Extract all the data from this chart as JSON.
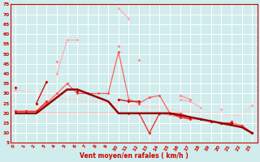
{
  "xlabel": "Vent moyen/en rafales ( km/h )",
  "xlim": [
    -0.5,
    23.5
  ],
  "ylim": [
    5,
    75
  ],
  "yticks": [
    5,
    10,
    15,
    20,
    25,
    30,
    35,
    40,
    45,
    50,
    55,
    60,
    65,
    70,
    75
  ],
  "xticks": [
    0,
    1,
    2,
    3,
    4,
    5,
    6,
    7,
    8,
    9,
    10,
    11,
    12,
    13,
    14,
    15,
    16,
    17,
    18,
    19,
    20,
    21,
    22,
    23
  ],
  "bg_color": "#d0ecec",
  "grid_color": "#ffffff",
  "series": [
    {
      "y": [
        32,
        null,
        null,
        null,
        40,
        57,
        57,
        null,
        null,
        null,
        73,
        68,
        null,
        null,
        null,
        null,
        27,
        26,
        23,
        null,
        22,
        null,
        null,
        24
      ],
      "color": "#ffaaaa",
      "lw": 0.8,
      "marker": true,
      "ms": 2.0,
      "zorder": 2
    },
    {
      "y": [
        null,
        null,
        null,
        null,
        46,
        null,
        null,
        null,
        null,
        null,
        54,
        null,
        47,
        null,
        null,
        null,
        29,
        27,
        null,
        null,
        null,
        null,
        null,
        null
      ],
      "color": "#ff8888",
      "lw": 0.8,
      "marker": true,
      "ms": 2.0,
      "zorder": 2
    },
    {
      "y": [
        33,
        null,
        25,
        36,
        null,
        null,
        31,
        null,
        null,
        null,
        27,
        26,
        26,
        null,
        20,
        20,
        19,
        18,
        17,
        16,
        15,
        15,
        null,
        10
      ],
      "color": "#cc0000",
      "lw": 0.9,
      "marker": true,
      "ms": 2.0,
      "zorder": 4
    },
    {
      "y": [
        21,
        21,
        21,
        26,
        null,
        null,
        null,
        null,
        null,
        null,
        null,
        20,
        20,
        10,
        20,
        20,
        18,
        17,
        null,
        null,
        null,
        16,
        null,
        null
      ],
      "color": "#ff2020",
      "lw": 0.9,
      "marker": true,
      "ms": 2.0,
      "zorder": 3
    },
    {
      "y": [
        21,
        21,
        21,
        25,
        30,
        35,
        30,
        30,
        30,
        30,
        51,
        27,
        25,
        28,
        29,
        20,
        20,
        18,
        17,
        16,
        15,
        15,
        14,
        10
      ],
      "color": "#ff5555",
      "lw": 0.8,
      "marker": true,
      "ms": 2.0,
      "zorder": 2
    },
    {
      "y": [
        20,
        20,
        20,
        24,
        28,
        32,
        32,
        30,
        28,
        26,
        20,
        20,
        20,
        20,
        20,
        20,
        19,
        18,
        17,
        16,
        15,
        14,
        13,
        10
      ],
      "color": "#990000",
      "lw": 1.8,
      "marker": false,
      "ms": 0,
      "zorder": 5
    },
    {
      "y": [
        32,
        31,
        30,
        29,
        28,
        27,
        27,
        26,
        26,
        25,
        25,
        24,
        24,
        23,
        23,
        22,
        21,
        21,
        20,
        20,
        20,
        19,
        19,
        24
      ],
      "color": "#ffcccc",
      "lw": 0.8,
      "marker": false,
      "ms": 0,
      "zorder": 1
    },
    {
      "y": [
        20,
        20,
        20,
        20,
        20,
        20,
        20,
        20,
        20,
        20,
        20,
        20,
        20,
        20,
        20,
        19,
        18,
        17,
        17,
        16,
        15,
        14,
        13,
        10
      ],
      "color": "#ff9999",
      "lw": 0.8,
      "marker": false,
      "ms": 0,
      "zorder": 1
    }
  ]
}
